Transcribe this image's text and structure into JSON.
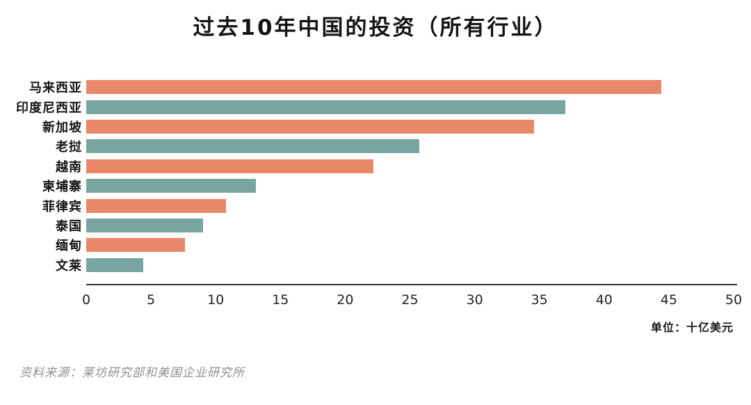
{
  "title": "过去10年中国的投资（所有行业）",
  "unit_label": "单位：十亿美元",
  "source": "资料来源：莱坊研究部和美国企业研究所",
  "colors": {
    "bar_orange": "#E98769",
    "bar_teal": "#78A5A0",
    "axis": "#2E2E2E",
    "text": "#141414",
    "source_text": "#8F8F8F"
  },
  "chart_data": {
    "type": "bar",
    "orientation": "horizontal",
    "title": "过去10年中国的投资（所有行业）",
    "categories": [
      "马来西亚",
      "印度尼西亚",
      "新加坡",
      "老挝",
      "越南",
      "柬埔寨",
      "菲律宾",
      "泰国",
      "缅甸",
      "文莱"
    ],
    "values": [
      44.4,
      37.0,
      34.6,
      25.7,
      22.2,
      13.1,
      10.8,
      9.0,
      7.6,
      4.4
    ],
    "bar_colors": [
      "#E98769",
      "#78A5A0",
      "#E98769",
      "#78A5A0",
      "#E98769",
      "#78A5A0",
      "#E98769",
      "#78A5A0",
      "#E98769",
      "#78A5A0"
    ],
    "xlabel": "单位：十亿美元",
    "ylabel": "",
    "xlim": [
      0,
      50
    ],
    "xticks": [
      0,
      5,
      10,
      15,
      20,
      25,
      30,
      35,
      40,
      45,
      50
    ],
    "grid": false,
    "legend": null
  }
}
